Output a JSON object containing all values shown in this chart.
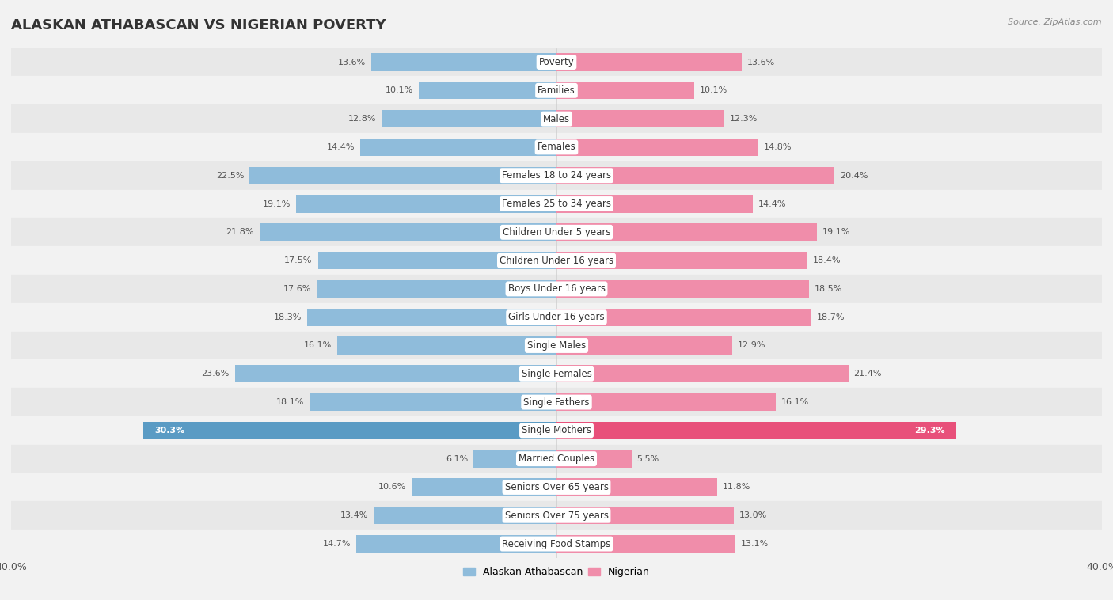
{
  "title": "ALASKAN ATHABASCAN VS NIGERIAN POVERTY",
  "source": "Source: ZipAtlas.com",
  "categories": [
    "Poverty",
    "Families",
    "Males",
    "Females",
    "Females 18 to 24 years",
    "Females 25 to 34 years",
    "Children Under 5 years",
    "Children Under 16 years",
    "Boys Under 16 years",
    "Girls Under 16 years",
    "Single Males",
    "Single Females",
    "Single Fathers",
    "Single Mothers",
    "Married Couples",
    "Seniors Over 65 years",
    "Seniors Over 75 years",
    "Receiving Food Stamps"
  ],
  "left_values": [
    13.6,
    10.1,
    12.8,
    14.4,
    22.5,
    19.1,
    21.8,
    17.5,
    17.6,
    18.3,
    16.1,
    23.6,
    18.1,
    30.3,
    6.1,
    10.6,
    13.4,
    14.7
  ],
  "right_values": [
    13.6,
    10.1,
    12.3,
    14.8,
    20.4,
    14.4,
    19.1,
    18.4,
    18.5,
    18.7,
    12.9,
    21.4,
    16.1,
    29.3,
    5.5,
    11.8,
    13.0,
    13.1
  ],
  "left_color": "#8fbcdb",
  "right_color": "#f08daa",
  "highlight_left_color": "#5a9bc4",
  "highlight_right_color": "#e8507a",
  "row_color_even": "#e8e8e8",
  "row_color_odd": "#f2f2f2",
  "background_color": "#f2f2f2",
  "max_value": 40.0,
  "left_label": "Alaskan Athabascan",
  "right_label": "Nigerian",
  "title_fontsize": 13,
  "label_fontsize": 8.5,
  "tick_fontsize": 9,
  "value_fontsize": 8
}
